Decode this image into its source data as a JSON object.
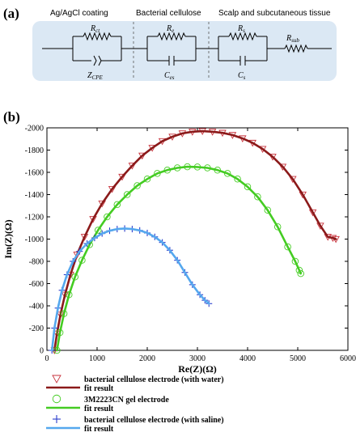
{
  "panel_a": {
    "label": "(a)",
    "section_headers": [
      "Ag/AgCl coating",
      "Bacterial cellulose",
      "Scalp and subcutaneous tissue"
    ],
    "components": {
      "rct": {
        "symbol": "R",
        "sub": "ct"
      },
      "zcpe": {
        "symbol": "Z",
        "sub": "CPE"
      },
      "re": {
        "symbol": "R",
        "sub": "e"
      },
      "ces": {
        "symbol": "C",
        "sub": "es"
      },
      "rs": {
        "symbol": "R",
        "sub": "s"
      },
      "cs": {
        "symbol": "C",
        "sub": "s"
      },
      "rsub": {
        "symbol": "R",
        "sub": "sub"
      }
    }
  },
  "panel_b": {
    "label": "(b)"
  },
  "chart_data": {
    "type": "scatter",
    "xlabel": "Re(Z)(Ω)",
    "ylabel": "Im(Z)(Ω)",
    "xlim": [
      0,
      6000
    ],
    "ylim": [
      0,
      -2000
    ],
    "xticks": [
      "0",
      "1000",
      "2000",
      "3000",
      "4000",
      "5000",
      "6000"
    ],
    "yticks": [
      "0",
      "-200",
      "-400",
      "-600",
      "-800",
      "-1000",
      "-1200",
      "-1400",
      "-1600",
      "-1800",
      "-2000"
    ],
    "grid": false,
    "legend_position": "below",
    "series": [
      {
        "name": "bacterial cellulose electrode (with water)",
        "marker": "triangle-down",
        "color": "#c8323c",
        "fit_name": "fit result",
        "fit_color": "#8b1a1a",
        "x": [
          150,
          200,
          270,
          360,
          470,
          600,
          750,
          920,
          1100,
          1300,
          1500,
          1700,
          1900,
          2100,
          2300,
          2500,
          2700,
          2900,
          3100,
          3300,
          3500,
          3700,
          3900,
          4100,
          4300,
          4500,
          4700,
          4900,
          5100,
          5300,
          5450,
          5600,
          5700,
          5760
        ],
        "y": [
          0,
          -150,
          -320,
          -500,
          -680,
          -860,
          -1020,
          -1180,
          -1320,
          -1450,
          -1560,
          -1660,
          -1750,
          -1820,
          -1880,
          -1920,
          -1950,
          -1965,
          -1970,
          -1965,
          -1955,
          -1935,
          -1905,
          -1865,
          -1810,
          -1740,
          -1650,
          -1540,
          -1400,
          -1240,
          -1120,
          -1020,
          -1010,
          -1000
        ]
      },
      {
        "name": "3M2223CN gel electrode",
        "marker": "circle",
        "color": "#44cc22",
        "fit_name": "fit result",
        "fit_color": "#44cc22",
        "x": [
          200,
          260,
          340,
          440,
          560,
          700,
          850,
          1020,
          1200,
          1400,
          1600,
          1800,
          2000,
          2200,
          2400,
          2600,
          2800,
          3000,
          3200,
          3400,
          3600,
          3800,
          4000,
          4200,
          4400,
          4600,
          4800,
          4950,
          5030,
          5060
        ],
        "y": [
          0,
          -160,
          -330,
          -500,
          -660,
          -810,
          -950,
          -1080,
          -1200,
          -1310,
          -1400,
          -1480,
          -1540,
          -1590,
          -1620,
          -1640,
          -1650,
          -1648,
          -1640,
          -1620,
          -1590,
          -1540,
          -1470,
          -1380,
          -1260,
          -1110,
          -930,
          -800,
          -720,
          -690
        ]
      },
      {
        "name": "bacterial cellulose electrode (with saline)",
        "marker": "plus",
        "color": "#2a3ccc",
        "fit_name": "fit result",
        "fit_color": "#55a8ee",
        "x": [
          100,
          150,
          220,
          300,
          400,
          520,
          650,
          800,
          950,
          1100,
          1250,
          1400,
          1550,
          1700,
          1850,
          2000,
          2150,
          2300,
          2450,
          2600,
          2750,
          2900,
          3050,
          3150,
          3230
        ],
        "y": [
          0,
          -200,
          -380,
          -540,
          -680,
          -800,
          -890,
          -960,
          -1010,
          -1050,
          -1075,
          -1090,
          -1095,
          -1090,
          -1078,
          -1055,
          -1020,
          -970,
          -900,
          -810,
          -700,
          -590,
          -500,
          -450,
          -420
        ]
      }
    ]
  }
}
